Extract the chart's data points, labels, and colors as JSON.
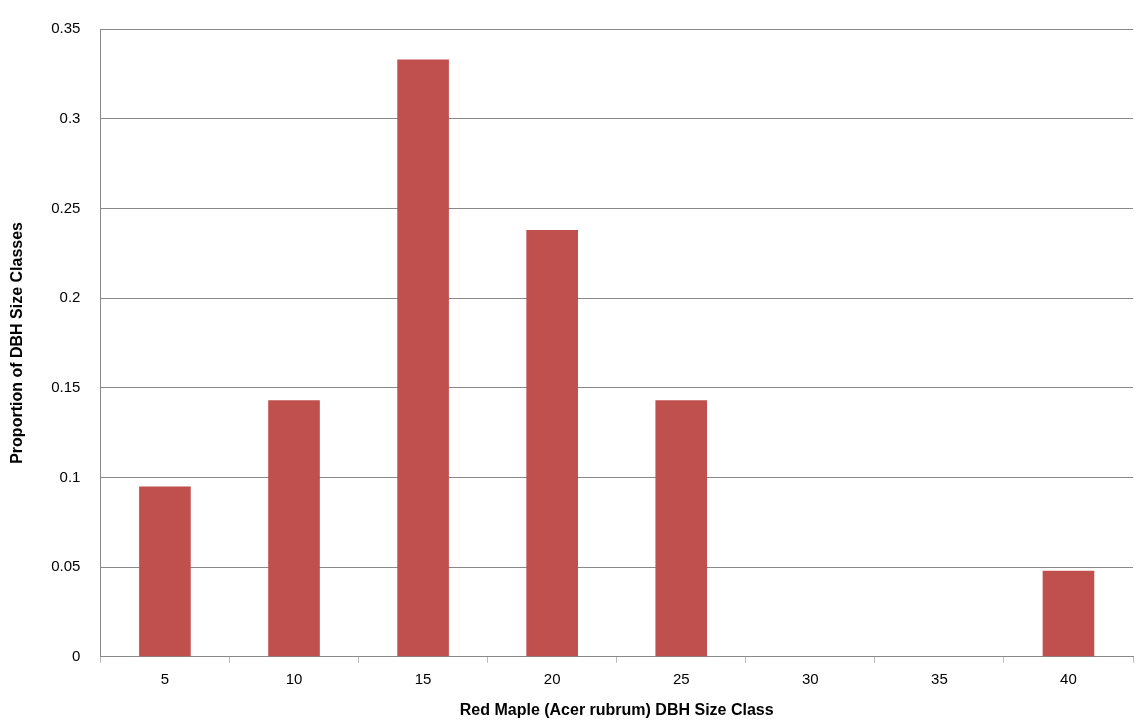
{
  "chart_data": {
    "type": "bar",
    "xlabel": "Red Maple (Acer rubrum) DBH Size Class",
    "ylabel": "Proportion of DBH Size Classes",
    "categories": [
      "5",
      "10",
      "15",
      "20",
      "25",
      "30",
      "35",
      "40"
    ],
    "values": [
      0.095,
      0.143,
      0.333,
      0.238,
      0.143,
      0,
      0,
      0.048
    ],
    "color": "#c0504d",
    "ylim": [
      0,
      0.35
    ],
    "yticks": [
      0,
      0.05,
      0.1,
      0.15,
      0.2,
      0.25,
      0.3,
      0.35
    ],
    "grid": "y"
  }
}
